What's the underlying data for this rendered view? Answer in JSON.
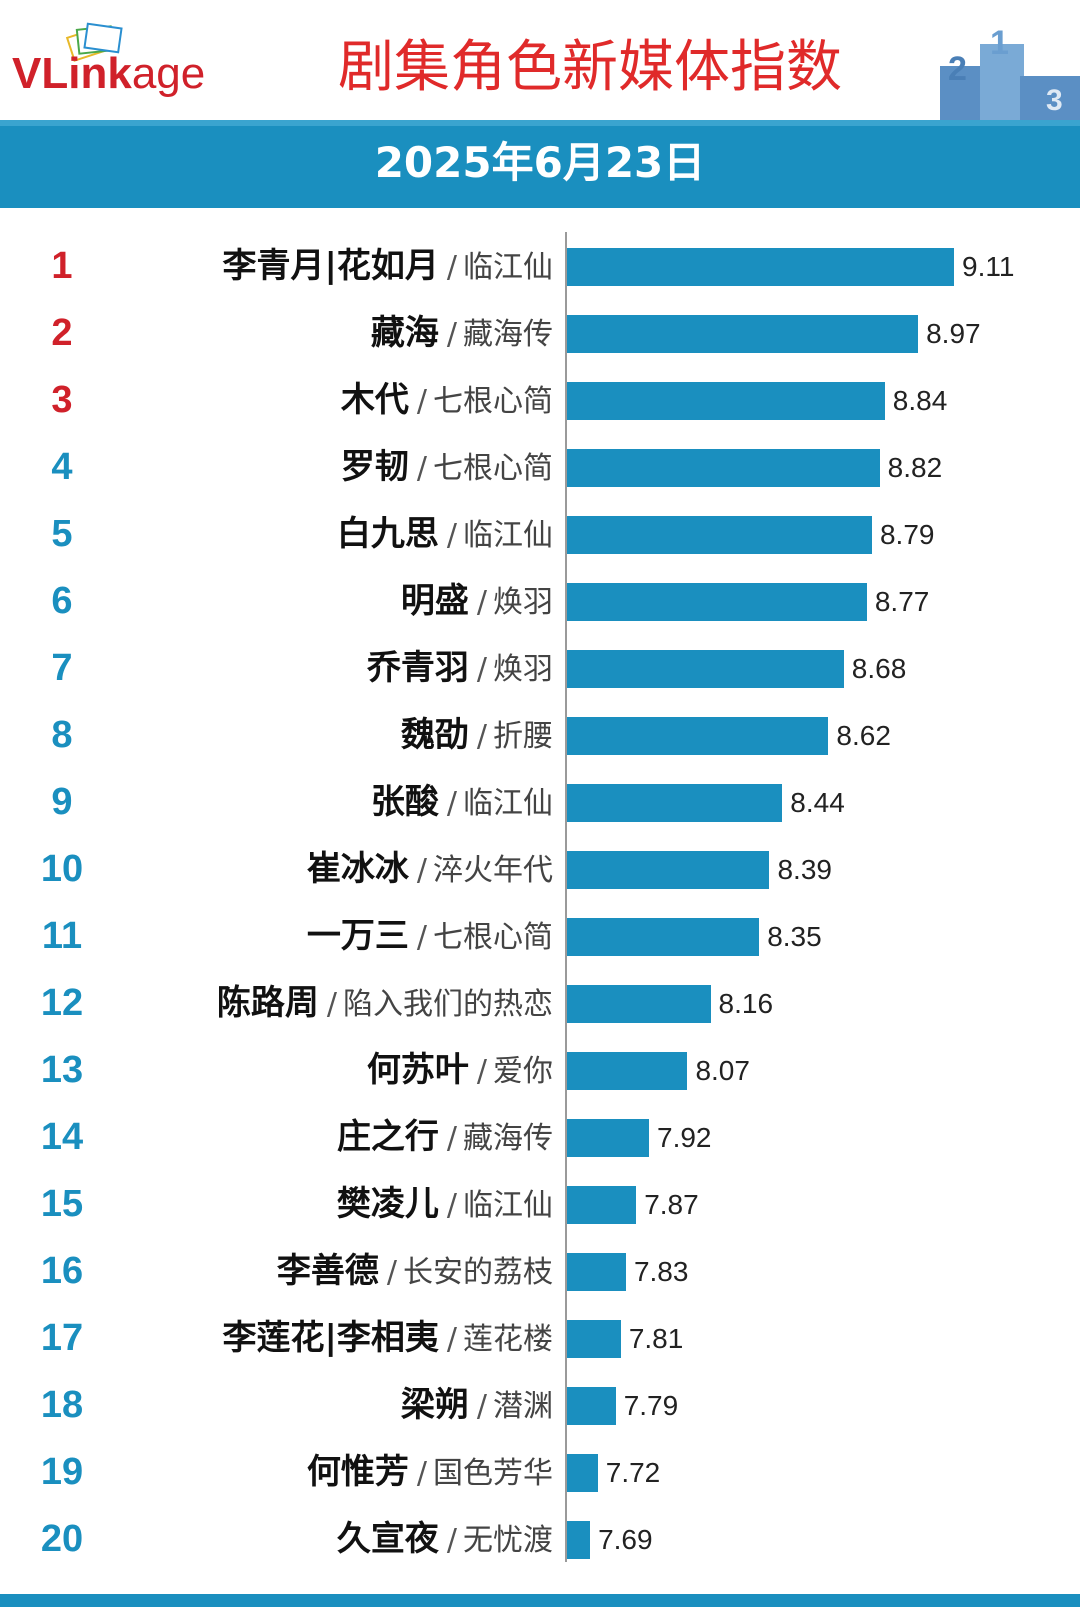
{
  "header": {
    "logo": {
      "v": "V",
      "link": "Link",
      "age": "age"
    },
    "title": "剧集角色新媒体指数",
    "podium": {
      "first": "1",
      "second": "2",
      "third": "3"
    }
  },
  "date": "2025年6月23日",
  "colors": {
    "bar": "#1a8fbf",
    "top_rank": "#d0212a",
    "rank": "#1a8fbf",
    "title": "#e02a2a"
  },
  "chart_data": {
    "type": "bar",
    "orientation": "horizontal",
    "title": "剧集角色新媒体指数",
    "subtitle": "2025年6月23日",
    "rows": [
      {
        "rank": "1",
        "name": "李青月|花如月",
        "drama": "临江仙",
        "value": 9.11,
        "label": "9.11"
      },
      {
        "rank": "2",
        "name": "藏海",
        "drama": "藏海传",
        "value": 8.97,
        "label": "8.97"
      },
      {
        "rank": "3",
        "name": "木代",
        "drama": "七根心简",
        "value": 8.84,
        "label": "8.84"
      },
      {
        "rank": "4",
        "name": "罗韧",
        "drama": "七根心简",
        "value": 8.82,
        "label": "8.82"
      },
      {
        "rank": "5",
        "name": "白九思",
        "drama": "临江仙",
        "value": 8.79,
        "label": "8.79"
      },
      {
        "rank": "6",
        "name": "明盛",
        "drama": "焕羽",
        "value": 8.77,
        "label": "8.77"
      },
      {
        "rank": "7",
        "name": "乔青羽",
        "drama": "焕羽",
        "value": 8.68,
        "label": "8.68"
      },
      {
        "rank": "8",
        "name": "魏劭",
        "drama": "折腰",
        "value": 8.62,
        "label": "8.62"
      },
      {
        "rank": "9",
        "name": "张酸",
        "drama": "临江仙",
        "value": 8.44,
        "label": "8.44"
      },
      {
        "rank": "10",
        "name": "崔冰冰",
        "drama": "淬火年代",
        "value": 8.39,
        "label": "8.39"
      },
      {
        "rank": "11",
        "name": "一万三",
        "drama": "七根心简",
        "value": 8.35,
        "label": "8.35"
      },
      {
        "rank": "12",
        "name": "陈路周",
        "drama": "陷入我们的热恋",
        "value": 8.16,
        "label": "8.16"
      },
      {
        "rank": "13",
        "name": "何苏叶",
        "drama": "爱你",
        "value": 8.07,
        "label": "8.07"
      },
      {
        "rank": "14",
        "name": "庄之行",
        "drama": "藏海传",
        "value": 7.92,
        "label": "7.92"
      },
      {
        "rank": "15",
        "name": "樊凌儿",
        "drama": "临江仙",
        "value": 7.87,
        "label": "7.87"
      },
      {
        "rank": "16",
        "name": "李善德",
        "drama": "长安的荔枝",
        "value": 7.83,
        "label": "7.83"
      },
      {
        "rank": "17",
        "name": "李莲花|李相夷",
        "drama": "莲花楼",
        "value": 7.81,
        "label": "7.81"
      },
      {
        "rank": "18",
        "name": "梁朔",
        "drama": "潜渊",
        "value": 7.79,
        "label": "7.79"
      },
      {
        "rank": "19",
        "name": "何惟芳",
        "drama": "国色芳华",
        "value": 7.72,
        "label": "7.72"
      },
      {
        "rank": "20",
        "name": "久宣夜",
        "drama": "无忧渡",
        "value": 7.69,
        "label": "7.69"
      }
    ],
    "xlim": [
      7.6,
      9.11
    ],
    "grid": false,
    "legend": "none"
  }
}
